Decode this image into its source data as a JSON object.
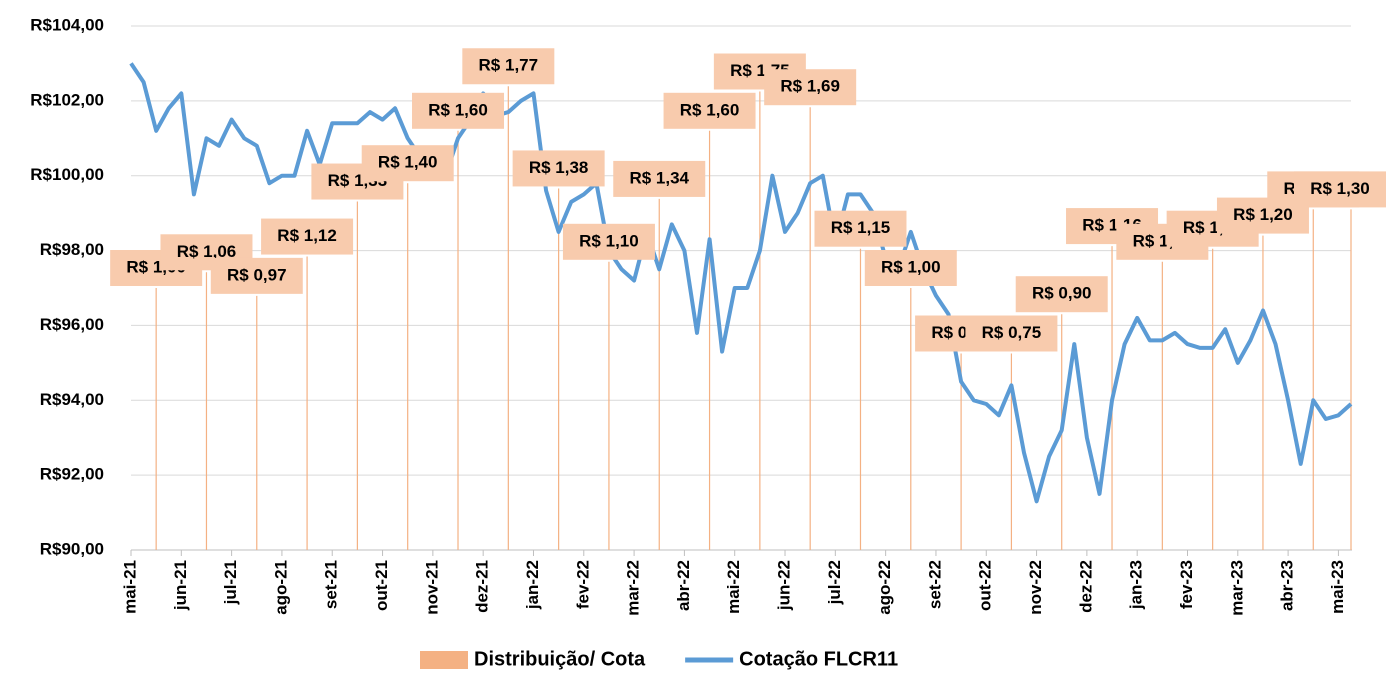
{
  "chart_data": {
    "type": "combo",
    "categories": [
      "mai-21",
      null,
      null,
      null,
      "jun-21",
      null,
      null,
      null,
      "jul-21",
      null,
      null,
      null,
      "ago-21",
      null,
      null,
      null,
      "set-21",
      null,
      null,
      null,
      "out-21",
      null,
      null,
      null,
      "nov-21",
      null,
      null,
      null,
      "dez-21",
      null,
      null,
      null,
      "jan-22",
      null,
      null,
      null,
      "fev-22",
      null,
      null,
      null,
      "mar-22",
      null,
      null,
      null,
      "abr-22",
      null,
      null,
      null,
      "mai-22",
      null,
      null,
      null,
      "jun-22",
      null,
      null,
      null,
      "jul-22",
      null,
      null,
      null,
      "ago-22",
      null,
      null,
      null,
      "set-22",
      null,
      null,
      null,
      "out-22",
      null,
      null,
      null,
      "nov-22",
      null,
      null,
      null,
      "dez-22",
      null,
      null,
      null,
      "jan-23",
      null,
      null,
      null,
      "fev-23",
      null,
      null,
      null,
      "mar-23",
      null,
      null,
      null,
      "abr-23",
      null,
      null,
      null,
      "mai-23",
      null
    ],
    "series": [
      {
        "name": "Distribuição/ Cota",
        "type": "bar",
        "axis": "y2",
        "color": "#f4b183",
        "label_fill": "#f8cbad",
        "values": [
          null,
          null,
          1.0,
          null,
          null,
          null,
          1.06,
          null,
          null,
          null,
          0.97,
          null,
          null,
          null,
          1.12,
          null,
          null,
          null,
          1.33,
          null,
          null,
          null,
          1.4,
          null,
          null,
          null,
          1.6,
          null,
          null,
          null,
          1.77,
          null,
          null,
          null,
          1.38,
          null,
          null,
          null,
          1.1,
          null,
          null,
          null,
          1.34,
          null,
          null,
          null,
          1.6,
          null,
          null,
          null,
          1.75,
          null,
          null,
          null,
          1.69,
          null,
          null,
          null,
          1.15,
          null,
          null,
          null,
          1.0,
          null,
          null,
          null,
          0.75,
          null,
          null,
          null,
          0.75,
          null,
          null,
          null,
          0.9,
          null,
          null,
          null,
          1.16,
          null,
          null,
          null,
          1.1,
          null,
          null,
          null,
          1.15,
          null,
          null,
          null,
          1.2,
          null,
          null,
          null,
          1.3,
          null,
          null,
          1.3
        ],
        "value_labels": [
          null,
          null,
          "R$ 1,00",
          null,
          null,
          null,
          "R$ 1,06",
          null,
          null,
          null,
          "R$ 0,97",
          null,
          null,
          null,
          "R$ 1,12",
          null,
          null,
          null,
          "R$ 1,33",
          null,
          null,
          null,
          "R$ 1,40",
          null,
          null,
          null,
          "R$ 1,60",
          null,
          null,
          null,
          "R$ 1,77",
          null,
          null,
          null,
          "R$ 1,38",
          null,
          null,
          null,
          "R$ 1,10",
          null,
          null,
          null,
          "R$ 1,34",
          null,
          null,
          null,
          "R$ 1,60",
          null,
          null,
          null,
          "R$ 1,75",
          null,
          null,
          null,
          "R$ 1,69",
          null,
          null,
          null,
          "R$ 1,15",
          null,
          null,
          null,
          "R$ 1,00",
          null,
          null,
          null,
          "R$ 0,75",
          null,
          null,
          null,
          "R$ 0,75",
          null,
          null,
          null,
          "R$ 0,90",
          null,
          null,
          null,
          "R$ 1,16",
          null,
          null,
          null,
          "R$ 1,10",
          null,
          null,
          null,
          "R$ 1,15",
          null,
          null,
          null,
          "R$ 1,20",
          null,
          null,
          null,
          "R$ 1,30",
          null,
          null,
          "R$ 1,30"
        ]
      },
      {
        "name": "Cotação FLCR11",
        "type": "line",
        "color": "#5b9bd5",
        "values": [
          103.0,
          102.5,
          101.2,
          101.8,
          102.2,
          99.5,
          101.0,
          100.8,
          101.5,
          101.0,
          100.8,
          99.8,
          100.0,
          100.0,
          101.2,
          100.3,
          101.4,
          101.4,
          101.4,
          101.7,
          101.5,
          101.8,
          101.0,
          100.5,
          100.0,
          100.0,
          101.0,
          101.5,
          102.2,
          101.6,
          101.7,
          102.0,
          102.2,
          99.6,
          98.5,
          99.3,
          99.5,
          99.8,
          98.0,
          97.5,
          97.2,
          98.5,
          97.5,
          98.7,
          98.0,
          95.8,
          98.3,
          95.3,
          97.0,
          97.0,
          98.0,
          100.0,
          98.5,
          99.0,
          99.8,
          100.0,
          98.2,
          99.5,
          99.5,
          99.0,
          97.8,
          97.5,
          98.5,
          97.5,
          96.8,
          96.3,
          94.5,
          94.0,
          93.9,
          93.6,
          94.4,
          92.6,
          91.3,
          92.5,
          93.2,
          95.5,
          93.0,
          91.5,
          94.0,
          95.5,
          96.2,
          95.6,
          95.6,
          95.8,
          95.5,
          95.4,
          95.4,
          95.9,
          95.0,
          95.6,
          96.4,
          95.5,
          94.0,
          92.3,
          94.0,
          93.5,
          93.6,
          93.9
        ]
      }
    ],
    "ylim": [
      90,
      104
    ],
    "yticks": [
      {
        "value": 90,
        "label": "R$90,00"
      },
      {
        "value": 92,
        "label": "R$92,00"
      },
      {
        "value": 94,
        "label": "R$94,00"
      },
      {
        "value": 96,
        "label": "R$96,00"
      },
      {
        "value": 98,
        "label": "R$98,00"
      },
      {
        "value": 100,
        "label": "R$100,00"
      },
      {
        "value": 102,
        "label": "R$102,00"
      },
      {
        "value": 104,
        "label": "R$104,00"
      }
    ],
    "y2lim": [
      0,
      2
    ],
    "grid": true,
    "legend": "bottom"
  }
}
